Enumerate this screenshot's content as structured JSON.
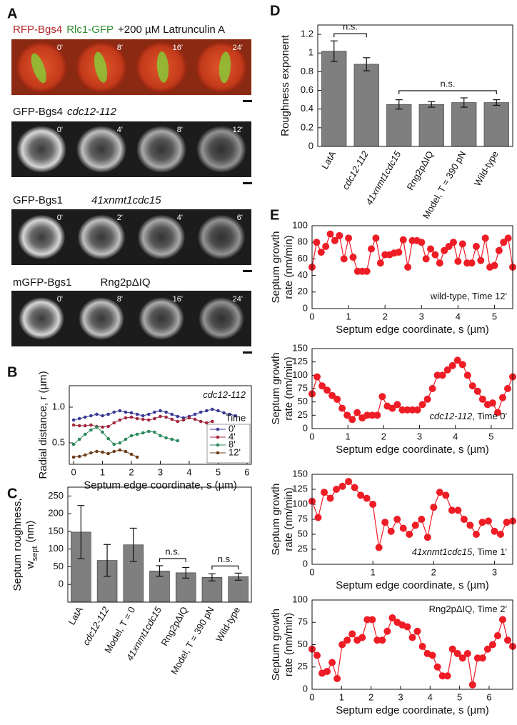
{
  "panel_labels": [
    "A",
    "B",
    "C",
    "D",
    "E"
  ],
  "panel_a": {
    "rows": [
      {
        "label": [
          {
            "text": "RFP-Bgs4",
            "color": "#b3262a"
          },
          {
            "text": "Rlc1-GFP",
            "color": "#2e8b2e"
          },
          {
            "text": "+200 µM Latrunculin A"
          }
        ],
        "times": [
          "0'",
          "8'",
          "16'",
          "24'"
        ]
      },
      {
        "label": [
          {
            "text": "GFP-Bgs4"
          },
          {
            "text": "cdc12-112",
            "style": "italic"
          }
        ],
        "times": [
          "0'",
          "4'",
          "8'",
          "12'"
        ]
      },
      {
        "label": [
          {
            "text": "GFP-Bgs1"
          },
          {
            "text": "41xnmt1cdc15",
            "style": "italic"
          }
        ],
        "times": [
          "0'",
          "2'",
          "4'",
          "6'"
        ]
      },
      {
        "label": [
          {
            "text": "mGFP-Bgs1"
          },
          {
            "text": "Rng2pΔIQ"
          }
        ],
        "times": [
          "0'",
          "8'",
          "16'",
          "24'"
        ]
      }
    ]
  },
  "chart_data": [
    {
      "type": "line",
      "annotation": [
        {
          "text": "cdc12-112",
          "style": "italic"
        }
      ],
      "annotation_corner": "upper right",
      "x_label": "Septum edge coordinate, s (µm)",
      "y_label": [
        [
          {
            "text": "Radial distance, r  (µm)"
          }
        ]
      ],
      "xlim": [
        -0.15,
        6.15
      ],
      "xticks": [
        0,
        1,
        2,
        3,
        4,
        5,
        6
      ],
      "ylim": [
        0.2,
        1.3
      ],
      "yticks": [
        0.5,
        {
          "value": 1,
          "label": "1.0"
        }
      ],
      "legend_title": "Time",
      "legend": "lower right",
      "series": [
        {
          "name": "0'",
          "color": "#3b3b98",
          "x": [
            0,
            0.2,
            0.4,
            0.6,
            0.8,
            1,
            1.2,
            1.4,
            1.6,
            1.8,
            2,
            2.2,
            2.4,
            2.6,
            2.8,
            3,
            3.2,
            3.4,
            3.6,
            3.8,
            4,
            4.2,
            4.4,
            4.6,
            4.8,
            5,
            5.2,
            5.4,
            5.6
          ],
          "values": [
            0.82,
            0.84,
            0.86,
            0.88,
            0.9,
            0.88,
            0.9,
            0.93,
            0.95,
            0.93,
            0.92,
            0.9,
            0.88,
            0.9,
            0.93,
            0.95,
            0.93,
            0.9,
            0.87,
            0.85,
            0.87,
            0.9,
            0.93,
            0.95,
            0.97,
            0.95,
            0.92,
            0.9,
            0.88
          ]
        },
        {
          "name": "4'",
          "color": "#a3283c",
          "x": [
            0,
            0.2,
            0.4,
            0.6,
            0.8,
            1,
            1.2,
            1.4,
            1.6,
            1.8,
            2,
            2.2,
            2.4,
            2.6,
            2.8,
            3,
            3.2,
            3.4,
            3.6,
            3.8,
            4,
            4.2,
            4.4,
            4.6,
            4.8
          ],
          "values": [
            0.75,
            0.74,
            0.74,
            0.75,
            0.73,
            0.72,
            0.73,
            0.78,
            0.82,
            0.85,
            0.86,
            0.84,
            0.83,
            0.82,
            0.84,
            0.87,
            0.86,
            0.83,
            0.8,
            0.82,
            0.85,
            0.83,
            0.8,
            0.78,
            0.8
          ]
        },
        {
          "name": "8'",
          "color": "#2b8a5b",
          "x": [
            0,
            0.2,
            0.4,
            0.6,
            0.8,
            1,
            1.2,
            1.4,
            1.6,
            1.8,
            2,
            2.2,
            2.4,
            2.6,
            2.8,
            3,
            3.2,
            3.4,
            3.6
          ],
          "values": [
            0.48,
            0.55,
            0.62,
            0.68,
            0.72,
            0.65,
            0.56,
            0.48,
            0.5,
            0.55,
            0.6,
            0.62,
            0.64,
            0.66,
            0.65,
            0.6,
            0.57,
            0.55,
            0.53
          ]
        },
        {
          "name": "12'",
          "color": "#6b3f1e",
          "x": [
            0,
            0.2,
            0.4,
            0.6,
            0.8,
            1,
            1.2,
            1.4,
            1.6,
            1.8,
            2,
            2.2
          ],
          "values": [
            0.3,
            0.31,
            0.33,
            0.36,
            0.38,
            0.37,
            0.35,
            0.38,
            0.4,
            0.38,
            0.34,
            0.3
          ]
        }
      ]
    },
    {
      "type": "bar",
      "y_label": [
        [
          {
            "text": "Septum roughness,"
          }
        ],
        [
          {
            "text": "w"
          },
          {
            "text": "sept",
            "sub": true
          },
          {
            "text": "(nm)"
          }
        ]
      ],
      "categories": [
        "LatA",
        "cdc12-112",
        "Model, T = 0",
        "41xnmt1cdc15",
        "Rng2pΔIQ",
        "Model, T = 390 pN",
        "Wild-type"
      ],
      "italic": [
        false,
        true,
        false,
        true,
        false,
        false,
        false
      ],
      "values": [
        148,
        68,
        112,
        38,
        33,
        20,
        22
      ],
      "errors": [
        75,
        45,
        47,
        15,
        15,
        10,
        10
      ],
      "color": "#7f7f7f",
      "ylim": [
        -50,
        275
      ],
      "yticks": [
        0,
        50,
        100,
        150,
        200,
        250
      ],
      "brackets": [
        {
          "text": "n.s.",
          "categories": [
            3,
            4
          ]
        },
        {
          "text": "n.s.",
          "categories": [
            5,
            6
          ]
        }
      ]
    },
    {
      "type": "bar",
      "y_label": [
        [
          {
            "text": "Roughness exponent"
          }
        ]
      ],
      "categories": [
        "LatA",
        "cdc12-112",
        "41xnmt1cdc15",
        "Rng2pΔIQ",
        "Model, T = 390 pN",
        "Wild-type"
      ],
      "italic": [
        false,
        true,
        true,
        false,
        false,
        false
      ],
      "values": [
        1.02,
        0.88,
        0.45,
        0.45,
        0.47,
        0.47
      ],
      "errors": [
        0.11,
        0.07,
        0.05,
        0.03,
        0.05,
        0.03
      ],
      "color": "#7f7f7f",
      "ylim": [
        0,
        1.3
      ],
      "yticks": [
        0,
        0.2,
        0.4,
        0.6,
        0.8,
        1,
        1.2
      ],
      "brackets": [
        {
          "text": "n.s.",
          "categories": [
            0,
            1
          ]
        },
        {
          "text": "n.s.",
          "categories": [
            2,
            5
          ]
        }
      ]
    },
    {
      "type": "line",
      "markers": true,
      "color": "#ee1c25",
      "annotation": [
        {
          "text": "wild-type, Time 12'"
        }
      ],
      "annotation_corner": "lower right",
      "x_label": "Septum edge coordinate, s (µm)",
      "y_label": [
        [
          {
            "text": "Septum growth"
          }
        ],
        [
          {
            "text": "rate (nm/min)"
          }
        ]
      ],
      "xlim": [
        0,
        5.5
      ],
      "xticks": [
        0,
        1,
        2,
        3,
        4,
        5
      ],
      "ylim": [
        0,
        100
      ],
      "yticks": [
        0,
        20,
        40,
        60,
        80,
        100
      ],
      "x": [
        0,
        0.125,
        0.25,
        0.375,
        0.5,
        0.625,
        0.75,
        0.875,
        1,
        1.125,
        1.25,
        1.375,
        1.5,
        1.625,
        1.75,
        1.875,
        2,
        2.125,
        2.25,
        2.375,
        2.5,
        2.625,
        2.75,
        2.875,
        3,
        3.125,
        3.25,
        3.375,
        3.5,
        3.625,
        3.75,
        3.875,
        4,
        4.125,
        4.25,
        4.375,
        4.5,
        4.625,
        4.75,
        4.875,
        5,
        5.125,
        5.25,
        5.375,
        5.5
      ],
      "values": [
        50,
        80,
        68,
        75,
        90,
        82,
        88,
        60,
        85,
        62,
        45,
        45,
        45,
        72,
        85,
        55,
        65,
        65,
        67,
        68,
        83,
        50,
        82,
        82,
        80,
        60,
        72,
        65,
        55,
        70,
        75,
        80,
        57,
        78,
        55,
        55,
        75,
        58,
        85,
        50,
        52,
        70,
        80,
        85,
        50
      ]
    },
    {
      "type": "line",
      "markers": true,
      "color": "#ee1c25",
      "annotation": [
        {
          "text": "cdc12-112",
          "style": "italic"
        },
        {
          "text": ", Time 0'"
        }
      ],
      "annotation_corner": "lower right",
      "x_label": "Septum edge coordinate, s (µm)",
      "y_label": [
        [
          {
            "text": "Septum growth"
          }
        ],
        [
          {
            "text": "rate (nm/min)"
          }
        ]
      ],
      "xlim": [
        0,
        5.6
      ],
      "xticks": [
        0,
        1,
        2,
        3,
        4,
        5
      ],
      "ylim": [
        0,
        150
      ],
      "yticks": [
        0,
        25,
        50,
        75,
        100,
        125,
        150
      ],
      "x": [
        0,
        0.14,
        0.28,
        0.42,
        0.56,
        0.7,
        0.84,
        0.98,
        1.12,
        1.26,
        1.4,
        1.54,
        1.68,
        1.82,
        1.96,
        2.1,
        2.24,
        2.38,
        2.52,
        2.66,
        2.8,
        2.94,
        3.08,
        3.22,
        3.36,
        3.5,
        3.64,
        3.78,
        3.92,
        4.06,
        4.2,
        4.34,
        4.48,
        4.62,
        4.76,
        4.9,
        5.04,
        5.18,
        5.32,
        5.46,
        5.6
      ],
      "values": [
        65,
        97,
        80,
        72,
        62,
        55,
        38,
        25,
        17,
        30,
        20,
        25,
        25,
        25,
        60,
        42,
        38,
        45,
        35,
        35,
        35,
        35,
        45,
        55,
        75,
        100,
        100,
        110,
        118,
        128,
        120,
        100,
        80,
        70,
        55,
        45,
        48,
        30,
        58,
        75,
        97
      ]
    },
    {
      "type": "line",
      "markers": true,
      "color": "#ee1c25",
      "annotation": [
        {
          "text": "41xnmt1cdc15",
          "style": "italic"
        },
        {
          "text": ", Time 1'"
        }
      ],
      "annotation_corner": "lower right",
      "x_label": "Septum edge coordinate, s (µm)",
      "y_label": [
        [
          {
            "text": "Septum growth"
          }
        ],
        [
          {
            "text": "rate (nm/min)"
          }
        ]
      ],
      "xlim": [
        0,
        3.3
      ],
      "xticks": [
        0,
        1,
        2,
        3
      ],
      "ylim": [
        0,
        150
      ],
      "yticks": [
        0,
        25,
        50,
        75,
        100,
        125,
        150
      ],
      "x": [
        0,
        0.1,
        0.2,
        0.3,
        0.4,
        0.5,
        0.6,
        0.7,
        0.8,
        0.9,
        1,
        1.1,
        1.2,
        1.3,
        1.4,
        1.5,
        1.6,
        1.7,
        1.8,
        1.9,
        2,
        2.1,
        2.2,
        2.3,
        2.4,
        2.5,
        2.6,
        2.7,
        2.8,
        2.9,
        3,
        3.1,
        3.2,
        3.3
      ],
      "values": [
        105,
        78,
        120,
        110,
        125,
        130,
        138,
        128,
        115,
        110,
        100,
        28,
        70,
        55,
        75,
        60,
        50,
        65,
        75,
        45,
        95,
        120,
        115,
        90,
        90,
        75,
        65,
        50,
        70,
        72,
        55,
        50,
        70,
        72
      ]
    },
    {
      "type": "line",
      "markers": true,
      "color": "#ee1c25",
      "annotation": [
        {
          "text": "Rng2pΔIQ, Time 2'"
        }
      ],
      "annotation_corner": "upper right",
      "x_label": "Septum edge coordinate, s (µm)",
      "y_label": [
        [
          {
            "text": "Septum growth"
          }
        ],
        [
          {
            "text": "rate (nm/min)"
          }
        ]
      ],
      "xlim": [
        0,
        6.8
      ],
      "xticks": [
        0,
        1,
        2,
        3,
        4,
        5,
        6
      ],
      "ylim": [
        0,
        100
      ],
      "yticks": [
        0,
        25,
        50,
        75,
        100
      ],
      "x": [
        0,
        0.17,
        0.34,
        0.51,
        0.68,
        0.85,
        1.02,
        1.19,
        1.36,
        1.53,
        1.7,
        1.87,
        2.04,
        2.21,
        2.38,
        2.55,
        2.72,
        2.89,
        3.06,
        3.23,
        3.4,
        3.57,
        3.74,
        3.91,
        4.08,
        4.25,
        4.42,
        4.59,
        4.76,
        4.93,
        5.1,
        5.27,
        5.44,
        5.61,
        5.78,
        5.95,
        6.12,
        6.29,
        6.46,
        6.63,
        6.8
      ],
      "values": [
        45,
        38,
        18,
        20,
        30,
        12,
        50,
        55,
        62,
        55,
        58,
        78,
        78,
        55,
        55,
        65,
        80,
        75,
        72,
        70,
        58,
        65,
        48,
        40,
        38,
        25,
        15,
        15,
        45,
        40,
        35,
        40,
        5,
        35,
        35,
        45,
        50,
        60,
        78,
        55,
        48
      ]
    }
  ]
}
